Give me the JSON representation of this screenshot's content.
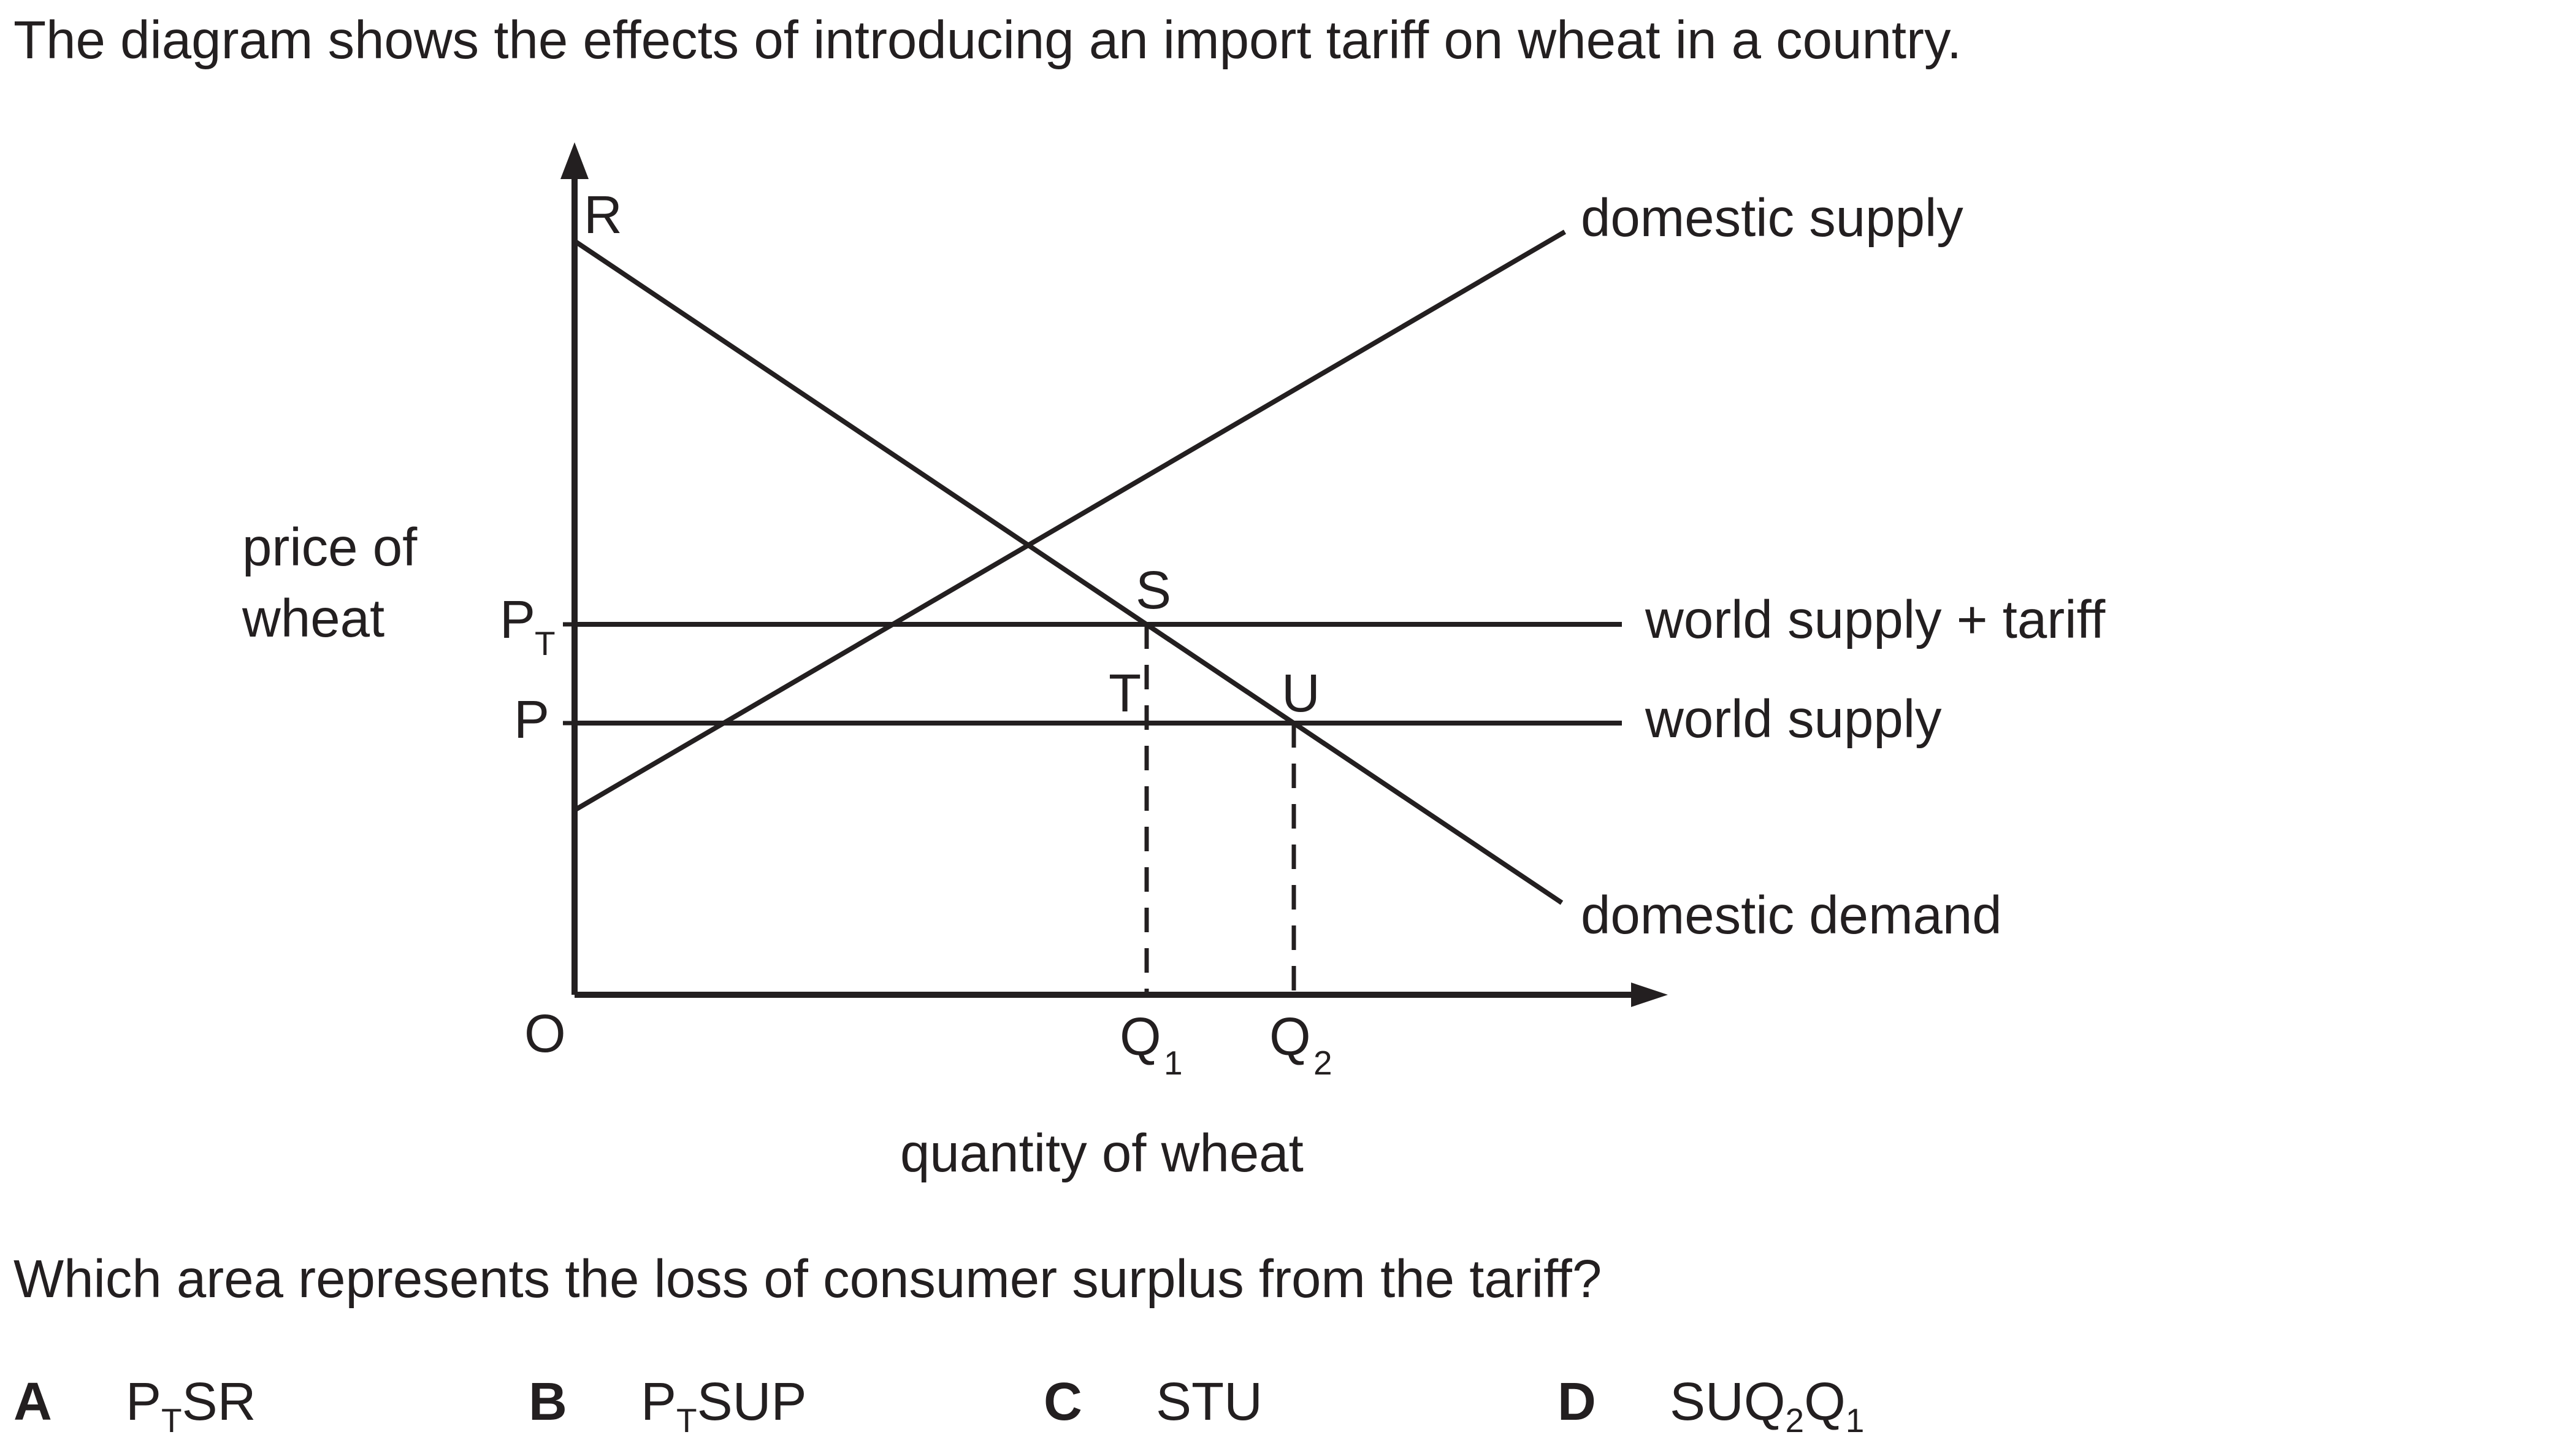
{
  "question": {
    "intro": "The diagram shows the effects of introducing an import tariff on wheat in a country.",
    "prompt": "Which area represents the loss of consumer surplus from the tariff?"
  },
  "diagram": {
    "y_axis_label_line1": "price of",
    "y_axis_label_line2": "wheat",
    "x_axis_label": "quantity of wheat",
    "origin_label": "O",
    "price_tariff_label": "P",
    "price_tariff_label_sub": "T",
    "price_world_label": "P",
    "q1_label": "Q",
    "q1_sub": "1",
    "q2_label": "Q",
    "q2_sub": "2",
    "point_r": "R",
    "point_s": "S",
    "point_t": "T",
    "point_u": "U",
    "line_domestic_supply": "domestic supply",
    "line_domestic_demand": "domestic demand",
    "line_world_supply_tariff": "world supply + tariff",
    "line_world_supply": "world supply",
    "colors": {
      "ink": "#231f20",
      "background": "#ffffff"
    }
  },
  "options": [
    {
      "letter": "A",
      "parts": [
        {
          "t": "P"
        },
        {
          "t": "T",
          "sub": true
        },
        {
          "t": "SR"
        }
      ]
    },
    {
      "letter": "B",
      "parts": [
        {
          "t": "P"
        },
        {
          "t": "T",
          "sub": true
        },
        {
          "t": "SUP"
        }
      ]
    },
    {
      "letter": "C",
      "parts": [
        {
          "t": "STU"
        }
      ]
    },
    {
      "letter": "D",
      "parts": [
        {
          "t": "SUQ"
        },
        {
          "t": "2",
          "sub": true
        },
        {
          "t": "Q"
        },
        {
          "t": "1",
          "sub": true
        }
      ]
    }
  ]
}
